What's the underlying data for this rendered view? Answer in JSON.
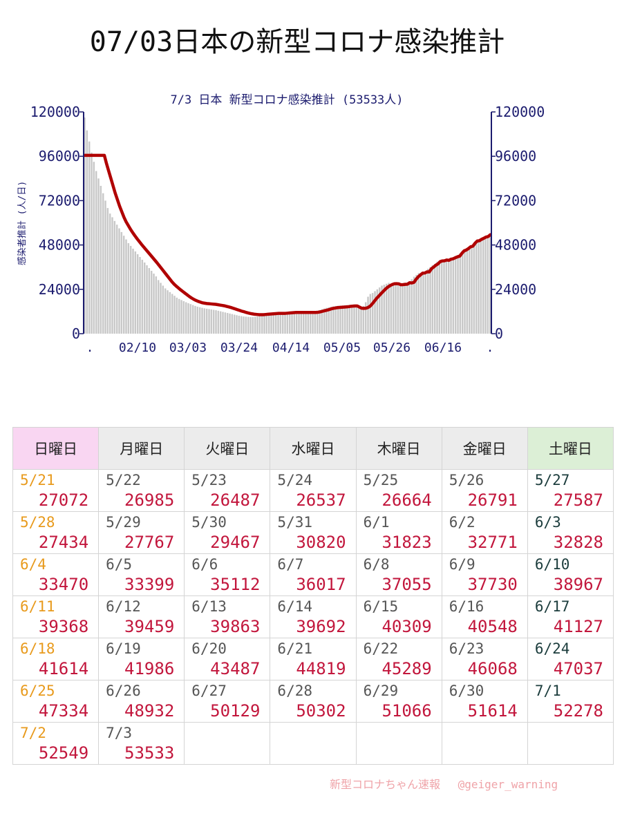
{
  "page_title": "07/03日本の新型コロナ感染推計",
  "credit": "新型コロナちゃん速報　 @geiger_warning",
  "colors": {
    "bars": "#c8c8c8",
    "line": "#b00000",
    "axis_text": "#1b1b6e",
    "sun_header": "#f9d6f2",
    "sat_header": "#dcefd6",
    "value_text": "#c2163c"
  },
  "chart_data": {
    "type": "bar",
    "title": "7/3 日本 新型コロナ感染推計 (53533人)",
    "ylabel": "感染者推計 (人/日)",
    "ylim": [
      0,
      120000
    ],
    "yticks": [
      "0",
      "24000",
      "48000",
      "72000",
      "96000",
      "120000"
    ],
    "xticks": [
      ".",
      "02/10",
      "03/03",
      "03/24",
      "04/14",
      "05/05",
      "05/26",
      "06/16",
      "."
    ],
    "grid": false,
    "bar_values": [
      117000,
      110000,
      104000,
      98000,
      93000,
      88000,
      84000,
      80000,
      76000,
      72000,
      68000,
      65000,
      63000,
      61000,
      59000,
      57000,
      55000,
      53000,
      51000,
      49000,
      47500,
      46000,
      44500,
      43000,
      41500,
      40000,
      38500,
      37000,
      35500,
      34000,
      32500,
      31000,
      29000,
      27500,
      26000,
      24500,
      23500,
      22500,
      21500,
      20500,
      19500,
      18800,
      18200,
      17600,
      17000,
      16500,
      16000,
      15500,
      15000,
      14600,
      14300,
      14000,
      13700,
      13500,
      13300,
      13100,
      12900,
      12700,
      12400,
      12100,
      11800,
      11500,
      11200,
      10900,
      10600,
      10300,
      10000,
      9700,
      9500,
      9300,
      9200,
      9100,
      9000,
      9000,
      9100,
      9300,
      9500,
      9700,
      9900,
      10000,
      10100,
      10200,
      10300,
      10400,
      10500,
      10600,
      10700,
      10800,
      10900,
      11000,
      11000,
      11000,
      11000,
      11000,
      11000,
      11100,
      11200,
      11400,
      11600,
      11800,
      12000,
      12400,
      12800,
      13200,
      13600,
      14000,
      14300,
      14600,
      14800,
      15000,
      15100,
      15200,
      15300,
      15400,
      15500,
      15600,
      15700,
      15800,
      14500,
      14000,
      14500,
      15000,
      17000,
      20000,
      21500,
      22000,
      23000,
      24000,
      25000,
      26000,
      26500,
      27000,
      27500,
      27072,
      26985,
      26487,
      26537,
      26664,
      26791,
      27587,
      27434,
      27767,
      29467,
      30820,
      31823,
      32771,
      32828,
      33470,
      33399,
      35112,
      36017,
      37055,
      37730,
      38967,
      39368,
      39459,
      39863,
      39692,
      40309,
      40548,
      41127,
      41614,
      41986,
      43487,
      44819,
      45289,
      46068,
      47037,
      47334,
      48932,
      50129,
      50302,
      51066,
      51614,
      52278,
      52549,
      53533
    ],
    "line_values": [
      96500,
      96500,
      96500,
      96500,
      96500,
      96500,
      96500,
      96500,
      96500,
      96500,
      92000,
      88000,
      84000,
      80000,
      76000,
      72500,
      69000,
      66000,
      63000,
      60500,
      58500,
      56500,
      54700,
      53000,
      51400,
      49900,
      48400,
      47000,
      45600,
      44200,
      42800,
      41400,
      40000,
      38600,
      37100,
      35600,
      34100,
      32600,
      31100,
      29600,
      28100,
      26800,
      25700,
      24700,
      23700,
      22800,
      21900,
      21000,
      20100,
      19300,
      18600,
      18000,
      17500,
      17100,
      16700,
      16500,
      16300,
      16200,
      16100,
      16000,
      15900,
      15700,
      15500,
      15300,
      15100,
      14800,
      14500,
      14200,
      13800,
      13400,
      13000,
      12600,
      12200,
      11900,
      11500,
      11200,
      10900,
      10700,
      10500,
      10400,
      10300,
      10300,
      10300,
      10400,
      10500,
      10600,
      10700,
      10800,
      10900,
      11000,
      11000,
      11000,
      11000,
      11100,
      11200,
      11300,
      11400,
      11500,
      11500,
      11500,
      11500,
      11500,
      11500,
      11500,
      11500,
      11500,
      11500,
      11600,
      11800,
      12100,
      12400,
      12700,
      13000,
      13400,
      13700,
      13900,
      14100,
      14200,
      14300,
      14400,
      14500,
      14600,
      14800,
      14900,
      15000,
      15000,
      14400,
      13800,
      13700,
      13800,
      14200,
      15000,
      16300,
      17800,
      19300,
      20500,
      21800,
      23000,
      24200,
      25200,
      26000,
      26600,
      27000,
      27072,
      26985,
      26487,
      26537,
      26664,
      26791,
      27587,
      27434,
      27767,
      29467,
      30820,
      31823,
      32771,
      32828,
      33470,
      33399,
      35112,
      36017,
      37055,
      37730,
      38967,
      39368,
      39459,
      39863,
      39692,
      40309,
      40548,
      41127,
      41614,
      41986,
      43487,
      44819,
      45289,
      46068,
      47037,
      47334,
      48932,
      50129,
      50302,
      51066,
      51614,
      52278,
      52549,
      53533
    ]
  },
  "calendar": {
    "headers": [
      "日曜日",
      "月曜日",
      "火曜日",
      "水曜日",
      "木曜日",
      "金曜日",
      "土曜日"
    ],
    "rows": [
      [
        {
          "date": "5/21",
          "value": "27072"
        },
        {
          "date": "5/22",
          "value": "26985"
        },
        {
          "date": "5/23",
          "value": "26487"
        },
        {
          "date": "5/24",
          "value": "26537"
        },
        {
          "date": "5/25",
          "value": "26664"
        },
        {
          "date": "5/26",
          "value": "26791"
        },
        {
          "date": "5/27",
          "value": "27587"
        }
      ],
      [
        {
          "date": "5/28",
          "value": "27434"
        },
        {
          "date": "5/29",
          "value": "27767"
        },
        {
          "date": "5/30",
          "value": "29467"
        },
        {
          "date": "5/31",
          "value": "30820"
        },
        {
          "date": "6/1",
          "value": "31823"
        },
        {
          "date": "6/2",
          "value": "32771"
        },
        {
          "date": "6/3",
          "value": "32828"
        }
      ],
      [
        {
          "date": "6/4",
          "value": "33470"
        },
        {
          "date": "6/5",
          "value": "33399"
        },
        {
          "date": "6/6",
          "value": "35112"
        },
        {
          "date": "6/7",
          "value": "36017"
        },
        {
          "date": "6/8",
          "value": "37055"
        },
        {
          "date": "6/9",
          "value": "37730"
        },
        {
          "date": "6/10",
          "value": "38967"
        }
      ],
      [
        {
          "date": "6/11",
          "value": "39368"
        },
        {
          "date": "6/12",
          "value": "39459"
        },
        {
          "date": "6/13",
          "value": "39863"
        },
        {
          "date": "6/14",
          "value": "39692"
        },
        {
          "date": "6/15",
          "value": "40309"
        },
        {
          "date": "6/16",
          "value": "40548"
        },
        {
          "date": "6/17",
          "value": "41127"
        }
      ],
      [
        {
          "date": "6/18",
          "value": "41614"
        },
        {
          "date": "6/19",
          "value": "41986"
        },
        {
          "date": "6/20",
          "value": "43487"
        },
        {
          "date": "6/21",
          "value": "44819"
        },
        {
          "date": "6/22",
          "value": "45289"
        },
        {
          "date": "6/23",
          "value": "46068"
        },
        {
          "date": "6/24",
          "value": "47037"
        }
      ],
      [
        {
          "date": "6/25",
          "value": "47334"
        },
        {
          "date": "6/26",
          "value": "48932"
        },
        {
          "date": "6/27",
          "value": "50129"
        },
        {
          "date": "6/28",
          "value": "50302"
        },
        {
          "date": "6/29",
          "value": "51066"
        },
        {
          "date": "6/30",
          "value": "51614"
        },
        {
          "date": "7/1",
          "value": "52278"
        }
      ],
      [
        {
          "date": "7/2",
          "value": "52549"
        },
        {
          "date": "7/3",
          "value": "53533"
        },
        {
          "date": "",
          "value": ""
        },
        {
          "date": "",
          "value": ""
        },
        {
          "date": "",
          "value": ""
        },
        {
          "date": "",
          "value": ""
        },
        {
          "date": "",
          "value": ""
        }
      ]
    ]
  }
}
